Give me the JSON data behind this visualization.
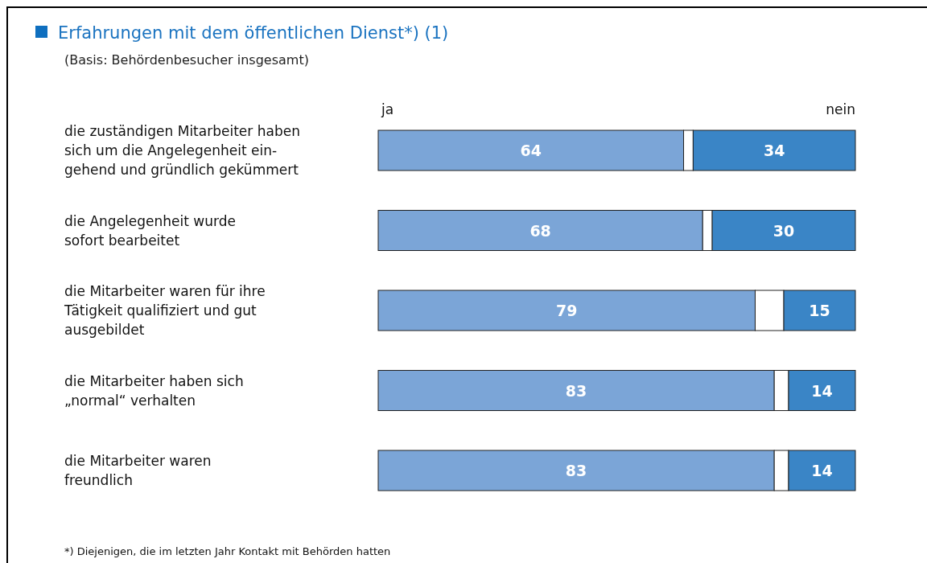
{
  "chart_data": {
    "type": "bar",
    "orientation": "horizontal",
    "stacked": true,
    "title": "Erfahrungen mit dem öffentlichen Dienst*) (1)",
    "subtitle": "(Basis: Behördenbesucher insgesamt)",
    "categories": [
      "die zuständigen Mitarbeiter haben\nsich um die Angelegenheit ein-\ngehend und gründlich gekümmert",
      "die Angelegenheit wurde\nsofort bearbeitet",
      "die Mitarbeiter waren für ihre\nTätigkeit qualifiziert und gut\nausgebildet",
      "die Mitarbeiter haben sich\n„normal“ verhalten",
      "die Mitarbeiter waren\nfreundlich"
    ],
    "series": [
      {
        "name": "ja",
        "color": "#7ba5d7",
        "values": [
          64,
          68,
          79,
          83,
          83
        ],
        "value_labels": [
          "64",
          "68",
          "79",
          "83",
          "83"
        ]
      },
      {
        "color": "#ffffff",
        "values": [
          2,
          2,
          6,
          3,
          3
        ]
      },
      {
        "name": "nein",
        "color": "#3a85c6",
        "values": [
          34,
          30,
          15,
          14,
          14
        ],
        "value_labels": [
          "34",
          "30",
          "15",
          "14",
          "14"
        ]
      }
    ],
    "xlim": [
      0,
      100
    ],
    "tick_labels": "y",
    "grid": false,
    "annotations": [
      "*) Diejenigen, die im letzten Jahr  Kontakt mit Behörden hatten"
    ]
  }
}
